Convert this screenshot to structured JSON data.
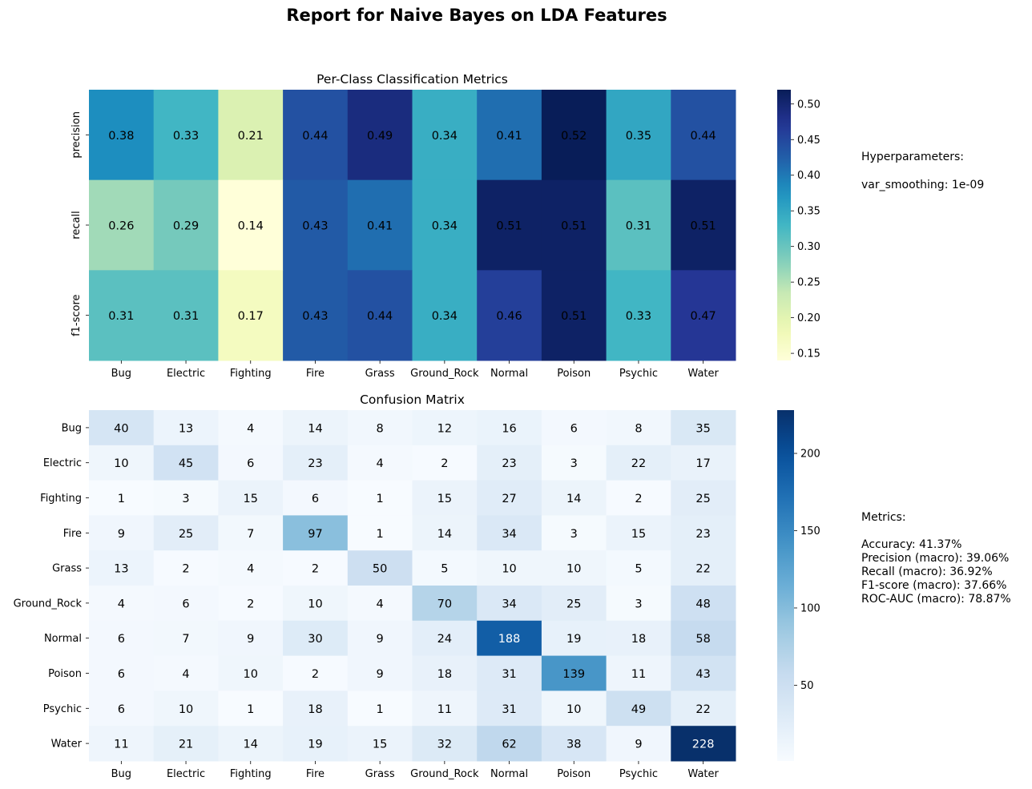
{
  "figure_title": "Report for Naive Bayes on LDA Features",
  "hyperparameters": {
    "heading": "Hyperparameters:",
    "lines": [
      "var_smoothing: 1e-09"
    ]
  },
  "metrics_panel": {
    "heading": "Metrics:",
    "lines": [
      "Accuracy: 41.37%",
      "Precision (macro): 39.06%",
      "Recall (macro): 36.92%",
      "F1-score (macro): 37.66%",
      "ROC-AUC (macro): 78.87%"
    ]
  },
  "chart_data": [
    {
      "type": "heatmap",
      "title": "Per-Class Classification Metrics",
      "colormap": "YlGnBu",
      "x_categories": [
        "Bug",
        "Electric",
        "Fighting",
        "Fire",
        "Grass",
        "Ground_Rock",
        "Normal",
        "Poison",
        "Psychic",
        "Water"
      ],
      "y_categories": [
        "precision",
        "recall",
        "f1-score"
      ],
      "values": [
        [
          0.38,
          0.33,
          0.21,
          0.44,
          0.49,
          0.34,
          0.41,
          0.52,
          0.35,
          0.44
        ],
        [
          0.26,
          0.29,
          0.14,
          0.43,
          0.41,
          0.34,
          0.51,
          0.51,
          0.31,
          0.51
        ],
        [
          0.31,
          0.31,
          0.17,
          0.43,
          0.44,
          0.34,
          0.46,
          0.51,
          0.33,
          0.47
        ]
      ],
      "colorbar": {
        "range": [
          0.14,
          0.52
        ],
        "ticks": [
          "0.15",
          "0.20",
          "0.25",
          "0.30",
          "0.35",
          "0.40",
          "0.45",
          "0.50"
        ]
      }
    },
    {
      "type": "heatmap",
      "title": "Confusion Matrix",
      "colormap": "Blues",
      "x_categories": [
        "Bug",
        "Electric",
        "Fighting",
        "Fire",
        "Grass",
        "Ground_Rock",
        "Normal",
        "Poison",
        "Psychic",
        "Water"
      ],
      "y_categories": [
        "Bug",
        "Electric",
        "Fighting",
        "Fire",
        "Grass",
        "Ground_Rock",
        "Normal",
        "Poison",
        "Psychic",
        "Water"
      ],
      "values": [
        [
          40,
          13,
          4,
          14,
          8,
          12,
          16,
          6,
          8,
          35
        ],
        [
          10,
          45,
          6,
          23,
          4,
          2,
          23,
          3,
          22,
          17
        ],
        [
          1,
          3,
          15,
          6,
          1,
          15,
          27,
          14,
          2,
          25
        ],
        [
          9,
          25,
          7,
          97,
          1,
          14,
          34,
          3,
          15,
          23
        ],
        [
          13,
          2,
          4,
          2,
          50,
          5,
          10,
          10,
          5,
          22
        ],
        [
          4,
          6,
          2,
          10,
          4,
          70,
          34,
          25,
          3,
          48
        ],
        [
          6,
          7,
          9,
          30,
          9,
          24,
          188,
          19,
          18,
          58
        ],
        [
          6,
          4,
          10,
          2,
          9,
          18,
          31,
          139,
          11,
          43
        ],
        [
          6,
          10,
          1,
          18,
          1,
          11,
          31,
          10,
          49,
          22
        ],
        [
          11,
          21,
          14,
          19,
          15,
          32,
          62,
          38,
          9,
          228
        ]
      ],
      "colorbar": {
        "range": [
          1,
          228
        ],
        "ticks": [
          "50",
          "100",
          "150",
          "200"
        ]
      }
    }
  ]
}
